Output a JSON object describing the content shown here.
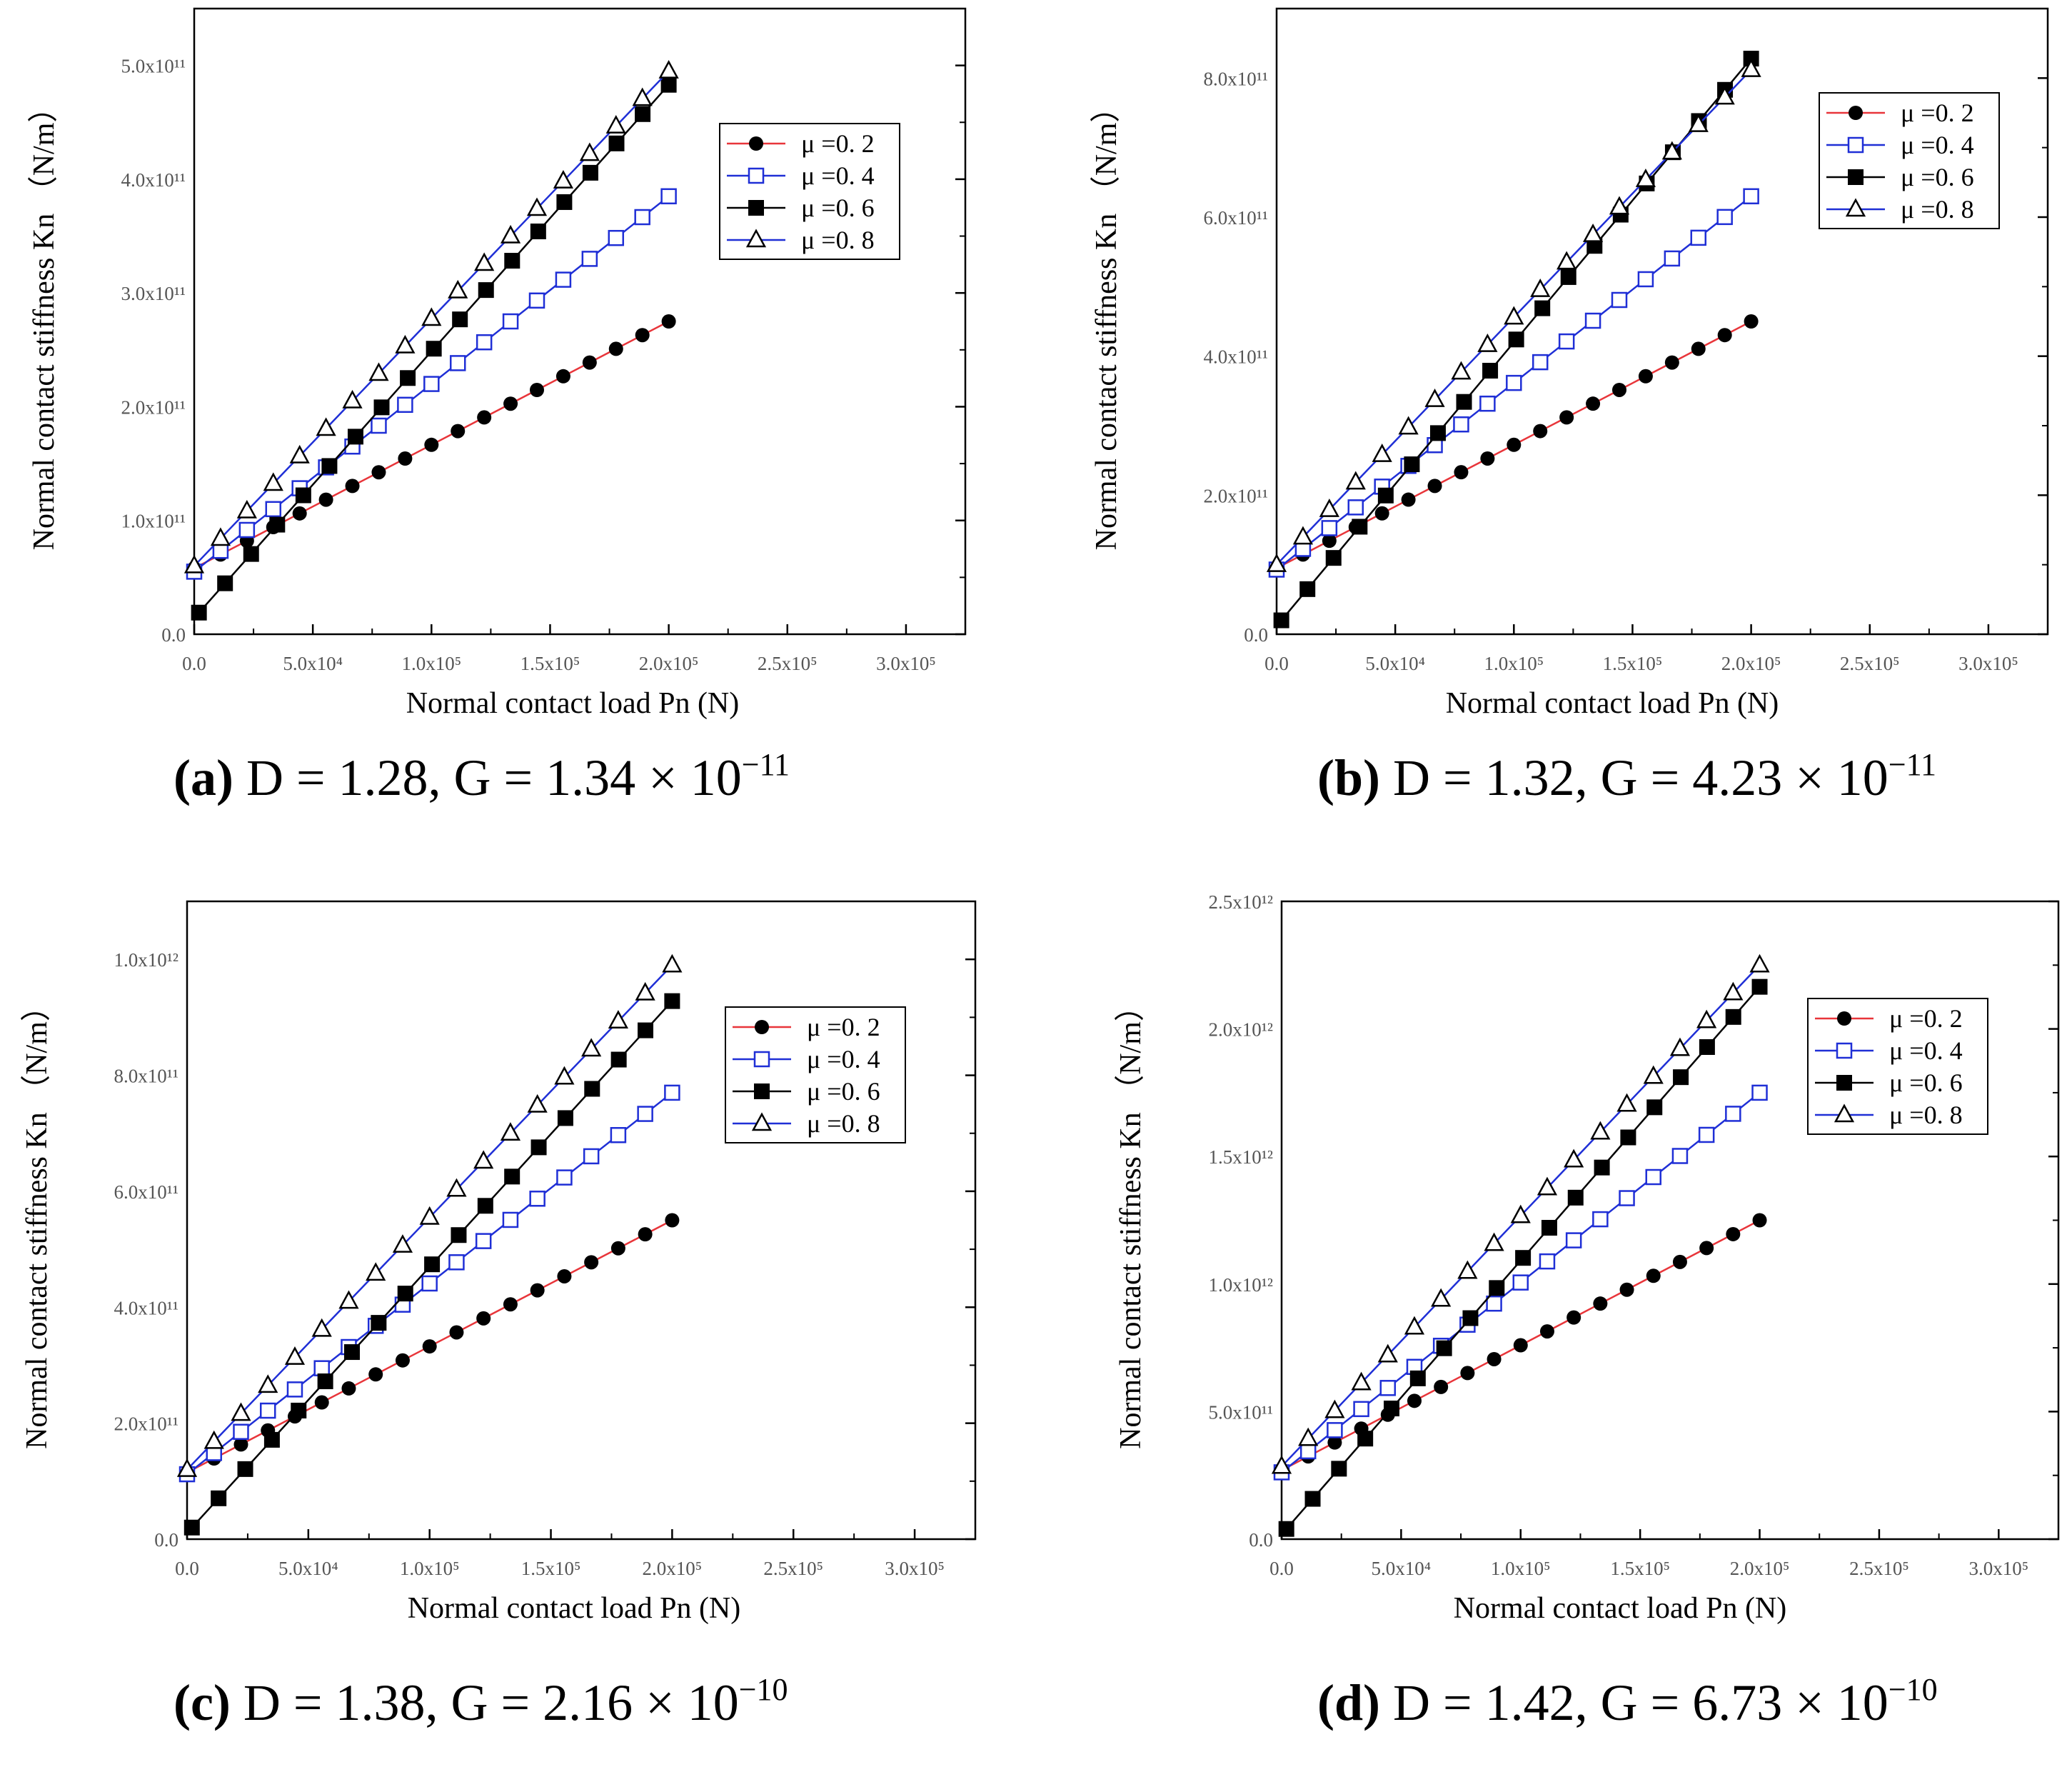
{
  "colors": {
    "red_line": "#e8353a",
    "blue_line": "#1f2fd6",
    "black_line": "#000000",
    "axis": "#000000",
    "tick_text": "#555555"
  },
  "legend_labels": [
    "μ =0. 2",
    "μ =0. 4",
    "μ =0. 6",
    "μ =0. 8"
  ],
  "marker_styles": [
    "filled-circle",
    "open-square",
    "filled-square",
    "open-triangle"
  ],
  "line_colors": [
    "#e8353a",
    "#1f2fd6",
    "#000000",
    "#1f2fd6"
  ],
  "x_axis_label": "Normal contact load Pn (N)",
  "x_tick_labels": [
    "0.0",
    "5.0x10⁴",
    "1.0x10⁵",
    "1.5x10⁵",
    "2.0x10⁵",
    "2.5x10⁵",
    "3.0x10⁵"
  ],
  "captions": [
    {
      "letter": "(a)",
      "text": " D = 1.28, G = 1.34 × 10",
      "exp": "−11"
    },
    {
      "letter": "(b)",
      "text": " D = 1.32, G = 4.23 × 10",
      "exp": "−11"
    },
    {
      "letter": "(c)",
      "text": " D = 1.38, G = 2.16 × 10",
      "exp": "−10"
    },
    {
      "letter": "(d)",
      "text": " D = 1.42, G = 6.73 × 10",
      "exp": "−10"
    }
  ],
  "chart_data": [
    {
      "type": "line",
      "panel": "a",
      "xlabel": "Normal contact load Pn (N)",
      "ylabel": "Normal contact stiffness Kn （N/m）",
      "xlim": [
        0,
        325000
      ],
      "ylim": [
        0,
        550000000000
      ],
      "y_tick_labels": [
        "0.0",
        "1.0x10¹¹",
        "2.0x10¹¹",
        "3.0x10¹¹",
        "4.0x10¹¹",
        "5.0x10¹¹"
      ],
      "y_tick_values": [
        0,
        100000000000,
        200000000000,
        300000000000,
        400000000000,
        500000000000
      ],
      "legend_position": "upper-right",
      "series": [
        {
          "name": "μ =0. 2",
          "start": [
            0,
            58000000000
          ],
          "end": [
            200000,
            275000000000
          ]
        },
        {
          "name": "μ =0. 4",
          "start": [
            0,
            55000000000
          ],
          "end": [
            200000,
            385000000000
          ]
        },
        {
          "name": "μ =0. 6",
          "start": [
            2000,
            19000000000
          ],
          "end": [
            200000,
            483000000000
          ]
        },
        {
          "name": "μ =0. 8",
          "start": [
            0,
            60000000000
          ],
          "end": [
            200000,
            495000000000
          ]
        }
      ]
    },
    {
      "type": "line",
      "panel": "b",
      "xlabel": "Normal contact load Pn (N)",
      "ylabel": "Normal contact stiffness Kn （N/m）",
      "xlim": [
        0,
        325000
      ],
      "ylim": [
        0,
        900000000000
      ],
      "y_tick_labels": [
        "0.0",
        "2.0x10¹¹",
        "4.0x10¹¹",
        "6.0x10¹¹",
        "8.0x10¹¹"
      ],
      "y_tick_values": [
        0,
        200000000000,
        400000000000,
        600000000000,
        800000000000
      ],
      "legend_position": "upper-right",
      "series": [
        {
          "name": "μ =0. 2",
          "start": [
            0,
            95000000000
          ],
          "end": [
            200000,
            450000000000
          ]
        },
        {
          "name": "μ =0. 4",
          "start": [
            0,
            93000000000
          ],
          "end": [
            200000,
            630000000000
          ]
        },
        {
          "name": "μ =0. 6",
          "start": [
            2000,
            20000000000
          ],
          "end": [
            200000,
            828000000000
          ]
        },
        {
          "name": "μ =0. 8",
          "start": [
            0,
            100000000000
          ],
          "end": [
            200000,
            812000000000
          ]
        }
      ]
    },
    {
      "type": "line",
      "panel": "c",
      "xlabel": "Normal contact load Pn (N)",
      "ylabel": "Normal contact stiffness Kn （N/m）",
      "xlim": [
        0,
        325000
      ],
      "ylim": [
        0,
        1100000000000
      ],
      "y_tick_labels": [
        "0.0",
        "2.0x10¹¹",
        "4.0x10¹¹",
        "6.0x10¹¹",
        "8.0x10¹¹",
        "1.0x10¹²"
      ],
      "y_tick_values": [
        0,
        200000000000,
        400000000000,
        600000000000,
        800000000000,
        1000000000000
      ],
      "legend_position": "upper-right",
      "series": [
        {
          "name": "μ =0. 2",
          "start": [
            0,
            115000000000
          ],
          "end": [
            200000,
            550000000000
          ]
        },
        {
          "name": "μ =0. 4",
          "start": [
            0,
            112000000000
          ],
          "end": [
            200000,
            770000000000
          ]
        },
        {
          "name": "μ =0. 6",
          "start": [
            2000,
            20000000000
          ],
          "end": [
            200000,
            928000000000
          ]
        },
        {
          "name": "μ =0. 8",
          "start": [
            0,
            120000000000
          ],
          "end": [
            200000,
            990000000000
          ]
        }
      ]
    },
    {
      "type": "line",
      "panel": "d",
      "xlabel": "Normal contact load Pn (N)",
      "ylabel": "Normal contact stiffness Kn （N/m）",
      "xlim": [
        0,
        325000
      ],
      "ylim": [
        0,
        2500000000000
      ],
      "y_tick_labels": [
        "0.0",
        "5.0x10¹¹",
        "1.0x10¹²",
        "1.5x10¹²",
        "2.0x10¹²",
        "2.5x10¹²"
      ],
      "y_tick_values": [
        0,
        500000000000,
        1000000000000,
        1500000000000,
        2000000000000,
        2500000000000
      ],
      "legend_position": "upper-right",
      "series": [
        {
          "name": "μ =0. 2",
          "start": [
            0,
            270000000000
          ],
          "end": [
            200000,
            1250000000000
          ]
        },
        {
          "name": "μ =0. 4",
          "start": [
            0,
            262000000000
          ],
          "end": [
            200000,
            1750000000000
          ]
        },
        {
          "name": "μ =0. 6",
          "start": [
            2000,
            40000000000
          ],
          "end": [
            200000,
            2165000000000
          ]
        },
        {
          "name": "μ =0. 8",
          "start": [
            0,
            285000000000
          ],
          "end": [
            200000,
            2250000000000
          ]
        }
      ]
    }
  ]
}
